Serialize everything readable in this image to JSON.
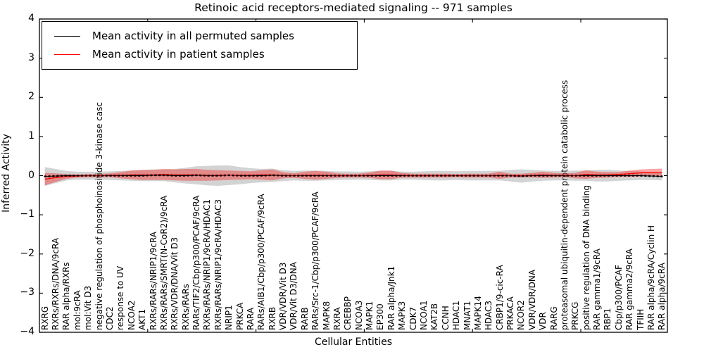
{
  "figure": {
    "title": "Retinoic acid receptors-mediated signaling -- 971 samples",
    "xlabel": "Cellular Entities",
    "ylabel": "Inferred Activity"
  },
  "chart_data": {
    "type": "line",
    "title": "Retinoic acid receptors-mediated signaling -- 971 samples",
    "xlabel": "Cellular Entities",
    "ylabel": "Inferred Activity",
    "ylim": [
      -4,
      4
    ],
    "yticks": [
      4,
      3,
      2,
      1,
      0,
      -1,
      -2,
      -3,
      -4
    ],
    "x_major_tick_indices": [
      10,
      20,
      30,
      40,
      50
    ],
    "grid": false,
    "legend_position": "upper left",
    "categories": [
      "RXRG",
      "RXRs/RXRs/DNA/9cRA",
      "RAR alpha/RXRs",
      "mol:9cRA",
      "mol:Vit D3",
      "negative regulation of phosphoinositide 3-kinase casc",
      "CDC2",
      "response to UV",
      "NCOA2",
      "AKT1",
      "RXRs/RARs/NRIP1/9cRA",
      "RXRs/RARs/SMRT(N-CoR2)/9cRA",
      "RXRs/VDR/DNA/Vit D3",
      "RXRs/RARs",
      "RARs/TIF2/Cbp/p300/PCAF/9cRA",
      "RXRs/RARs/NRIP1/9cRA/HDAC1",
      "RXRs/RARs/NRIP1/9cRA/HDAC3",
      "NRIP1",
      "PRKCA",
      "RARA",
      "RARs/AIB1/Cbp/p300/PCAF/9cRA",
      "RXRB",
      "VDR/VDR/Vit D3",
      "VDR/Vit D3/DNA",
      "RARB",
      "RARs/Src-1/Cbp/p300/PCAF/9cRA",
      "MAPK8",
      "RXRA",
      "CREBBP",
      "NCOA3",
      "MAPK1",
      "EP300",
      "RAR alpha/Jnk1",
      "MAPK3",
      "CDK7",
      "NCOA1",
      "KAT2B",
      "CCNH",
      "HDAC1",
      "MNAT1",
      "MAPK14",
      "HDAC3",
      "CRBP1/9-cic-RA",
      "PRKACA",
      "NCOR2",
      "VDR/VDR/DNA",
      "VDR",
      "RARG",
      "proteasomal ubiquitin-dependent protein catabolic process",
      "PRKCG",
      "positive regulation of DNA binding",
      "RAR gamma1/9cRA",
      "RBP1",
      "Cbp/p300/PCAF",
      "RAR gamma2/9cRA",
      "TFIIH",
      "RAR alpha/9cRA/Cyclin H",
      "RAR alpha/9cRA"
    ],
    "series": [
      {
        "name": "Mean activity in all permuted samples",
        "color": "#000000",
        "line_style": "solid-with-dot-markers",
        "band_color": "rgba(128,128,128,0.35)",
        "values": [
          -0.02,
          -0.01,
          0,
          0,
          0,
          0,
          0,
          0,
          0,
          0,
          0.01,
          0.01,
          0,
          0,
          0.01,
          0,
          0,
          0.01,
          0,
          0,
          0,
          0.01,
          0,
          0,
          0,
          0,
          0,
          0,
          0,
          0,
          0,
          0,
          0,
          0,
          0,
          0,
          0,
          0,
          0,
          0,
          0,
          0,
          0,
          0,
          -0.01,
          0,
          0,
          0,
          0,
          0,
          0,
          0,
          0,
          0,
          0,
          0,
          -0.01,
          -0.02
        ],
        "band_halfwidth": [
          0.24,
          0.18,
          0.12,
          0.1,
          0.1,
          0.1,
          0.11,
          0.12,
          0.13,
          0.14,
          0.15,
          0.15,
          0.17,
          0.2,
          0.23,
          0.25,
          0.26,
          0.25,
          0.22,
          0.19,
          0.17,
          0.17,
          0.14,
          0.12,
          0.13,
          0.13,
          0.12,
          0.11,
          0.11,
          0.1,
          0.11,
          0.12,
          0.12,
          0.1,
          0.1,
          0.11,
          0.12,
          0.12,
          0.11,
          0.12,
          0.12,
          0.12,
          0.12,
          0.15,
          0.17,
          0.15,
          0.13,
          0.12,
          0.12,
          0.13,
          0.13,
          0.15,
          0.15,
          0.13,
          0.12,
          0.11,
          0.1,
          0.1
        ]
      },
      {
        "name": "Mean activity in patient samples",
        "color": "#ff0000",
        "line_style": "solid",
        "band_color": "rgba(255,0,0,0.35)",
        "values": [
          -0.09,
          -0.05,
          -0.02,
          -0.01,
          0,
          0,
          0.01,
          0.01,
          0.02,
          0.02,
          0.02,
          0.03,
          0.02,
          0.02,
          0.02,
          0.01,
          0.01,
          0.01,
          0.01,
          0.01,
          0.02,
          0.02,
          0.01,
          0,
          0.01,
          0.01,
          0.01,
          0,
          0,
          0,
          0.01,
          0.02,
          0.02,
          0.01,
          0,
          0,
          0,
          0,
          0,
          0,
          0,
          0,
          0.01,
          0,
          0,
          0.01,
          0.02,
          0.01,
          0.01,
          0,
          0.03,
          0.02,
          0.02,
          0.03,
          0.05,
          0.07,
          0.08,
          0.08
        ],
        "band_halfwidth": [
          0.16,
          0.11,
          0.06,
          0.04,
          0.04,
          0.04,
          0.05,
          0.08,
          0.11,
          0.13,
          0.13,
          0.14,
          0.14,
          0.15,
          0.15,
          0.14,
          0.13,
          0.12,
          0.11,
          0.1,
          0.12,
          0.14,
          0.08,
          0.06,
          0.09,
          0.11,
          0.09,
          0.06,
          0.05,
          0.05,
          0.07,
          0.11,
          0.11,
          0.06,
          0.05,
          0.05,
          0.05,
          0.05,
          0.04,
          0.05,
          0.05,
          0.05,
          0.09,
          0.05,
          0.05,
          0.06,
          0.08,
          0.06,
          0.05,
          0.07,
          0.11,
          0.08,
          0.07,
          0.06,
          0.08,
          0.09,
          0.09,
          0.1
        ]
      }
    ]
  }
}
